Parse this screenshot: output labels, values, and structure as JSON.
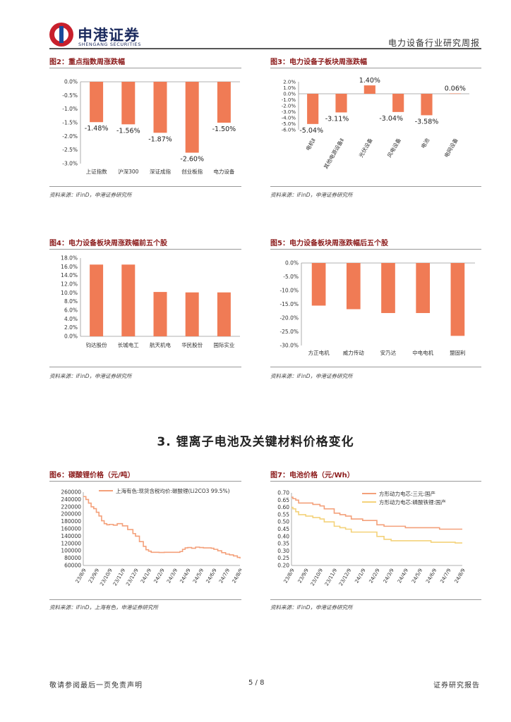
{
  "header": {
    "brand_cn": "申港证券",
    "brand_en": "SHENGANG SECURITIES",
    "report_type": "电力设备行业研究周报"
  },
  "colors": {
    "bar": "#f07b55",
    "line1": "#f4a07a",
    "line2": "#f4d27a",
    "title": "#8b1a1a"
  },
  "fig2": {
    "title": "图2：重点指数周涨跌幅",
    "source": "资料来源：iFinD，申港证券研究所",
    "chart_data": {
      "type": "bar",
      "categories": [
        "上证指数",
        "沪深300",
        "深证成指",
        "创业板指",
        "电力设备"
      ],
      "values": [
        -1.48,
        -1.56,
        -1.87,
        -2.6,
        -1.5
      ],
      "data_labels": [
        "-1.48%",
        "-1.56%",
        "-1.87%",
        "-2.60%",
        "-1.50%"
      ],
      "ylim": [
        -3.0,
        0.0
      ],
      "ticks": [
        0.0,
        -0.5,
        -1.0,
        -1.5,
        -2.0,
        -2.5,
        -3.0
      ],
      "tick_labels": [
        "0.0%",
        "-0.5%",
        "-1.0%",
        "-1.5%",
        "-2.0%",
        "-2.5%",
        "-3.0%"
      ]
    }
  },
  "fig3": {
    "title": "图3：电力设备子板块周涨跌幅",
    "source": "资料来源：iFinD，申港证券研究所",
    "chart_data": {
      "type": "bar",
      "categories": [
        "电机Ⅱ",
        "其他电源设备Ⅱ",
        "光伏设备",
        "风电设备",
        "电池",
        "电网设备"
      ],
      "values": [
        -5.04,
        -3.11,
        1.4,
        -3.04,
        -3.58,
        0.06
      ],
      "data_labels": [
        "-5.04%",
        "-3.11%",
        "1.40%",
        "-3.04%",
        "-3.58%",
        "0.06%"
      ],
      "ylim": [
        -6.0,
        2.0
      ],
      "ticks": [
        2.0,
        1.0,
        0.0,
        -1.0,
        -2.0,
        -3.0,
        -4.0,
        -5.0,
        -6.0
      ],
      "tick_labels": [
        "2.0%",
        "1.0%",
        "0.0%",
        "-1.0%",
        "-2.0%",
        "-3.0%",
        "-4.0%",
        "-5.0%",
        "-6.0%"
      ]
    }
  },
  "fig4": {
    "title": "图4：电力设备板块周涨跌幅前五个股",
    "source": "资料来源：iFinD，申港证券研究所",
    "chart_data": {
      "type": "bar",
      "categories": [
        "钧达股份",
        "长城电工",
        "航天机电",
        "华民股份",
        "国际实业"
      ],
      "values": [
        16.5,
        16.5,
        10.2,
        10.1,
        10.1
      ],
      "ylim": [
        0.0,
        18.0
      ],
      "ticks": [
        18,
        16,
        14,
        12,
        10,
        8,
        6,
        4,
        2,
        0
      ],
      "tick_labels": [
        "18.0%",
        "16.0%",
        "14.0%",
        "12.0%",
        "10.0%",
        "8.0%",
        "6.0%",
        "4.0%",
        "2.0%",
        "0.0%"
      ]
    }
  },
  "fig5": {
    "title": "图5：电力设备板块周涨跌幅后五个股",
    "source": "资料来源：iFinD，申港证券研究所",
    "chart_data": {
      "type": "bar",
      "categories": [
        "方正电机",
        "威力传动",
        "安乃达",
        "中电电机",
        "盟固利"
      ],
      "values": [
        -15.5,
        -16.8,
        -18.2,
        -18.2,
        -26.5
      ],
      "ylim": [
        -30.0,
        0.0
      ],
      "ticks": [
        0,
        -5,
        -10,
        -15,
        -20,
        -25,
        -30
      ],
      "tick_labels": [
        "0.0%",
        "-5.0%",
        "-10.0%",
        "-15.0%",
        "-20.0%",
        "-25.0%",
        "-30.0%"
      ]
    }
  },
  "section": {
    "title": "3. 锂离子电池及关键材料价格变化"
  },
  "fig6": {
    "title": "图6：碳酸锂价格（元/吨）",
    "source": "资料来源：iFinD，上海有色，申港证券研究所",
    "chart_data": {
      "type": "line",
      "series": [
        {
          "name": "上海有色:现货含税均价:碳酸锂(Li2CO3 99.5%)",
          "x": [
            0,
            0.2,
            0.4,
            0.6,
            0.8,
            1.0,
            1.2,
            1.4,
            1.6,
            1.8,
            2.0,
            2.3,
            2.6,
            3.0,
            3.4,
            3.8,
            4.0,
            4.3,
            4.6,
            4.8,
            5.0,
            5.2,
            5.5,
            5.8,
            6.2,
            6.5,
            6.8,
            7.1,
            7.4,
            7.6,
            7.8,
            8.0,
            8.3,
            8.6,
            8.9,
            9.2,
            9.5,
            9.8,
            10.0,
            10.3,
            10.6,
            10.9,
            11.2,
            11.5,
            11.8,
            12.0
          ],
          "values": [
            248000,
            240000,
            230000,
            220000,
            215000,
            205000,
            195000,
            182000,
            174000,
            171000,
            172000,
            170000,
            174000,
            168000,
            158000,
            147000,
            140000,
            125000,
            112000,
            103000,
            99000,
            96000,
            96000,
            95500,
            96000,
            96000,
            96000,
            96000,
            98000,
            104000,
            108000,
            109000,
            107000,
            110000,
            109000,
            108000,
            108000,
            107000,
            104000,
            100000,
            95000,
            91000,
            89000,
            86000,
            82000,
            79000
          ]
        }
      ],
      "x_tick_labels": [
        "23/8/9",
        "23/9/9",
        "23/10/9",
        "23/11/9",
        "23/12/9",
        "24/1/9",
        "24/2/9",
        "24/3/9",
        "24/4/9",
        "24/5/9",
        "24/6/9",
        "24/7/9",
        "24/8/9"
      ],
      "ylim": [
        60000,
        260000
      ],
      "ticks": [
        260000,
        240000,
        220000,
        200000,
        180000,
        160000,
        140000,
        120000,
        100000,
        80000,
        60000
      ],
      "tick_labels": [
        "260000",
        "240000",
        "220000",
        "200000",
        "180000",
        "160000",
        "140000",
        "120000",
        "100000",
        "80000",
        "60000"
      ]
    }
  },
  "fig7": {
    "title": "图7：电池价格（元/Wh）",
    "source": "资料来源：iFinD，申港证券研究所",
    "chart_data": {
      "type": "line",
      "series": [
        {
          "name": "方形动力电芯:三元:国产",
          "x": [
            0,
            0.1,
            0.3,
            0.5,
            0.7,
            1.0,
            1.5,
            2.0,
            2.3,
            2.6,
            3.0,
            3.4,
            3.8,
            4.2,
            4.6,
            5.0,
            5.4,
            6.0,
            6.5,
            7.0,
            7.5,
            8.0,
            8.6,
            9.2,
            9.8,
            10.4,
            11.0,
            11.5,
            12.0
          ],
          "values": [
            0.67,
            0.66,
            0.65,
            0.63,
            0.63,
            0.63,
            0.62,
            0.61,
            0.59,
            0.59,
            0.56,
            0.55,
            0.54,
            0.52,
            0.52,
            0.51,
            0.51,
            0.48,
            0.47,
            0.47,
            0.47,
            0.46,
            0.46,
            0.46,
            0.46,
            0.45,
            0.45,
            0.45,
            0.45
          ]
        },
        {
          "name": "方形动力电芯:磷酸铁锂:国产",
          "x": [
            0,
            0.1,
            0.3,
            0.5,
            0.7,
            1.0,
            1.5,
            2.0,
            2.3,
            2.6,
            3.0,
            3.4,
            3.8,
            4.2,
            4.6,
            5.0,
            5.4,
            6.0,
            6.5,
            7.0,
            7.5,
            8.0,
            8.6,
            9.2,
            9.8,
            10.4,
            11.0,
            11.5,
            12.0
          ],
          "values": [
            0.6,
            0.59,
            0.57,
            0.55,
            0.55,
            0.54,
            0.53,
            0.52,
            0.5,
            0.5,
            0.47,
            0.46,
            0.45,
            0.43,
            0.43,
            0.43,
            0.43,
            0.4,
            0.38,
            0.37,
            0.37,
            0.37,
            0.37,
            0.37,
            0.36,
            0.36,
            0.36,
            0.355,
            0.355
          ]
        }
      ],
      "x_tick_labels": [
        "23/8/9",
        "23/9/9",
        "23/10/9",
        "23/11/9",
        "23/12/9",
        "24/1/9",
        "24/2/9",
        "24/3/9",
        "24/4/9",
        "24/5/9",
        "24/6/9",
        "24/7/9",
        "24/8/9"
      ],
      "ylim": [
        0.2,
        0.7
      ],
      "ticks": [
        0.7,
        0.65,
        0.6,
        0.55,
        0.5,
        0.45,
        0.4,
        0.35,
        0.3,
        0.25,
        0.2
      ],
      "tick_labels": [
        "0.70",
        "0.65",
        "0.60",
        "0.55",
        "0.50",
        "0.45",
        "0.40",
        "0.35",
        "0.30",
        "0.25",
        "0.20"
      ]
    }
  },
  "footer": {
    "disclaimer": "敬请参阅最后一页免责声明",
    "page": "5 / 8",
    "doc_type": "证券研究报告"
  }
}
